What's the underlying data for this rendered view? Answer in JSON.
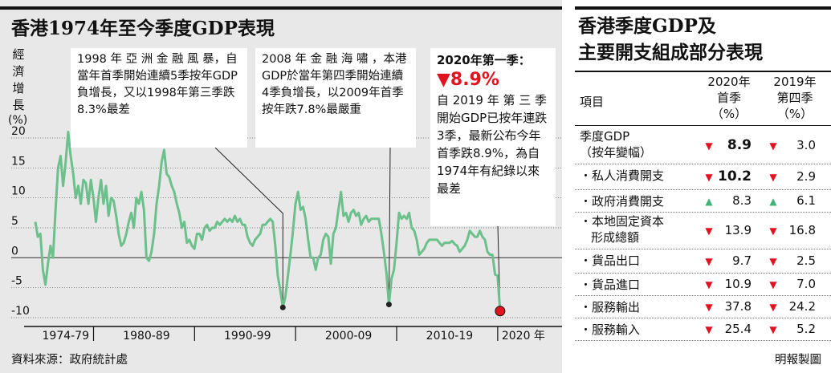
{
  "left": {
    "title": "香港1974年至今季度GDP表現",
    "ylabel_chars": [
      "經",
      "濟",
      "增",
      "長"
    ],
    "ylabel_unit": "(%)",
    "annotations": [
      {
        "text": "1998 年 亞 洲 金 融 風 暴，自當年首季開始連續5季按年GDP負增長，又以1998年第三季跌8.3%最差"
      },
      {
        "text": "2008 年 金 融 海 嘯 ，本港GDP於當年第四季開始連續4季負增長，以2009年首季按年跌7.8%最嚴重"
      },
      {
        "heading": "2020年第一季：",
        "value": "▼8.9%",
        "text": "自 2019 年 第 三 季開始GDP已按年連跌3季，最新公布今年首季跌8.9%，為自1974年有紀錄以來最差"
      }
    ],
    "source": "資料來源：政府統計處"
  },
  "right": {
    "title_line1": "香港季度GDP及",
    "title_line2": "主要開支組成部分表現",
    "col_item": "項目",
    "col1": [
      "2020年",
      "首季",
      "（%）"
    ],
    "col2": [
      "2019年",
      "第四季",
      "（%）"
    ],
    "rows": [
      {
        "label": "季度GDP",
        "label2": "（按年變幅）",
        "v1": "8.9",
        "d1": "down",
        "v2": "3.0",
        "d2": "down",
        "bold": true
      },
      {
        "label": "・私人消費開支",
        "v1": "10.2",
        "d1": "down",
        "v2": "2.9",
        "d2": "down",
        "bold": true
      },
      {
        "label": "・政府消費開支",
        "v1": "8.3",
        "d1": "up",
        "v2": "6.1",
        "d2": "up"
      },
      {
        "label": "・本地固定資本",
        "label2": "形成總額",
        "v1": "13.9",
        "d1": "down",
        "v2": "16.8",
        "d2": "down"
      },
      {
        "label": "・貨品出口",
        "v1": "9.7",
        "d1": "down",
        "v2": "2.5",
        "d2": "down"
      },
      {
        "label": "・貨品進口",
        "v1": "10.9",
        "d1": "down",
        "v2": "7.0",
        "d2": "down"
      },
      {
        "label": "・服務輸出",
        "v1": "37.8",
        "d1": "down",
        "v2": "24.2",
        "d2": "down"
      },
      {
        "label": "・服務輸入",
        "v1": "25.4",
        "d1": "down",
        "v2": "5.2",
        "d2": "down"
      }
    ],
    "credit": "明報製圖"
  },
  "chart_data": {
    "type": "line",
    "title": "香港1974年至今季度GDP表現",
    "ylabel": "經濟增長 (%)",
    "ylim": [
      -10,
      20
    ],
    "yticks": [
      20,
      15,
      10,
      5,
      0,
      -5,
      -10
    ],
    "xticks": [
      "1974-79",
      "1980-89",
      "1990-99",
      "2000-09",
      "2010-19",
      "2020 年"
    ],
    "xlim": [
      1974.0,
      2020.25
    ],
    "colors": {
      "line": "#6cc08c",
      "highlight": "#e0141e"
    },
    "series": [
      {
        "points": [
          [
            1974.0,
            6.0
          ],
          [
            1974.25,
            3.5
          ],
          [
            1974.5,
            4.0
          ],
          [
            1974.75,
            -2.0
          ],
          [
            1975.0,
            -4.5
          ],
          [
            1975.25,
            -1.0
          ],
          [
            1975.5,
            2.0
          ],
          [
            1975.75,
            0.0
          ],
          [
            1976.0,
            8.0
          ],
          [
            1976.25,
            15.0
          ],
          [
            1976.5,
            17.0
          ],
          [
            1976.75,
            12.0
          ],
          [
            1977.0,
            16.0
          ],
          [
            1977.25,
            21.0
          ],
          [
            1977.5,
            17.0
          ],
          [
            1977.75,
            14.0
          ],
          [
            1978.0,
            10.0
          ],
          [
            1978.25,
            12.0
          ],
          [
            1978.5,
            9.0
          ],
          [
            1978.75,
            13.0
          ],
          [
            1979.0,
            12.5
          ],
          [
            1979.25,
            9.0
          ],
          [
            1979.5,
            13.0
          ],
          [
            1979.75,
            10.0
          ],
          [
            1980.0,
            6.0
          ],
          [
            1980.25,
            10.0
          ],
          [
            1980.5,
            13.0
          ],
          [
            1980.75,
            9.0
          ],
          [
            1981.0,
            12.0
          ],
          [
            1981.25,
            7.0
          ],
          [
            1981.5,
            10.0
          ],
          [
            1981.75,
            9.5
          ],
          [
            1982.0,
            7.0
          ],
          [
            1982.25,
            4.0
          ],
          [
            1982.5,
            2.0
          ],
          [
            1982.75,
            2.5
          ],
          [
            1983.0,
            4.0
          ],
          [
            1983.25,
            6.0
          ],
          [
            1983.5,
            7.5
          ],
          [
            1983.75,
            5.0
          ],
          [
            1984.0,
            10.0
          ],
          [
            1984.25,
            9.0
          ],
          [
            1984.5,
            11.0
          ],
          [
            1984.75,
            8.0
          ],
          [
            1985.0,
            0.0
          ],
          [
            1985.25,
            -0.5
          ],
          [
            1985.5,
            1.0
          ],
          [
            1985.75,
            4.0
          ],
          [
            1986.0,
            9.0
          ],
          [
            1986.25,
            12.0
          ],
          [
            1986.5,
            16.0
          ],
          [
            1986.75,
            18.0
          ],
          [
            1987.0,
            14.0
          ],
          [
            1987.25,
            13.5
          ],
          [
            1987.5,
            12.0
          ],
          [
            1987.75,
            11.0
          ],
          [
            1988.0,
            9.0
          ],
          [
            1988.25,
            7.5
          ],
          [
            1988.5,
            5.0
          ],
          [
            1988.75,
            6.0
          ],
          [
            1989.0,
            2.5
          ],
          [
            1989.25,
            3.0
          ],
          [
            1989.5,
            2.0
          ],
          [
            1989.75,
            1.5
          ],
          [
            1990.0,
            4.0
          ],
          [
            1990.25,
            4.0
          ],
          [
            1990.5,
            3.0
          ],
          [
            1990.75,
            5.0
          ],
          [
            1991.0,
            5.5
          ],
          [
            1991.25,
            4.5
          ],
          [
            1991.5,
            5.0
          ],
          [
            1991.75,
            5.0
          ],
          [
            1992.0,
            6.0
          ],
          [
            1992.25,
            5.5
          ],
          [
            1992.5,
            6.0
          ],
          [
            1992.75,
            6.5
          ],
          [
            1993.0,
            6.0
          ],
          [
            1993.25,
            6.5
          ],
          [
            1993.5,
            6.0
          ],
          [
            1993.75,
            7.0
          ],
          [
            1994.0,
            6.0
          ],
          [
            1994.25,
            6.5
          ],
          [
            1994.5,
            5.5
          ],
          [
            1994.75,
            5.5
          ],
          [
            1995.0,
            3.5
          ],
          [
            1995.25,
            2.5
          ],
          [
            1995.5,
            2.0
          ],
          [
            1995.75,
            3.0
          ],
          [
            1996.0,
            3.5
          ],
          [
            1996.25,
            4.0
          ],
          [
            1996.5,
            5.5
          ],
          [
            1996.75,
            5.5
          ],
          [
            1997.0,
            6.0
          ],
          [
            1997.25,
            6.5
          ],
          [
            1997.5,
            6.0
          ],
          [
            1997.75,
            2.0
          ],
          [
            1998.0,
            -3.0
          ],
          [
            1998.25,
            -5.5
          ],
          [
            1998.5,
            -8.3
          ],
          [
            1998.75,
            -6.5
          ],
          [
            1999.0,
            -3.0
          ],
          [
            1999.25,
            0.5
          ],
          [
            1999.5,
            4.5
          ],
          [
            1999.75,
            9.0
          ],
          [
            2000.0,
            11.0
          ],
          [
            2000.25,
            8.0
          ],
          [
            2000.5,
            8.5
          ],
          [
            2000.75,
            6.5
          ],
          [
            2001.0,
            3.0
          ],
          [
            2001.25,
            0.0
          ],
          [
            2001.5,
            0.0
          ],
          [
            2001.75,
            -2.0
          ],
          [
            2002.0,
            0.0
          ],
          [
            2002.25,
            0.5
          ],
          [
            2002.5,
            3.0
          ],
          [
            2002.75,
            4.0
          ],
          [
            2003.0,
            3.5
          ],
          [
            2003.25,
            -1.0
          ],
          [
            2003.5,
            4.0
          ],
          [
            2003.75,
            5.0
          ],
          [
            2004.0,
            8.0
          ],
          [
            2004.25,
            11.0
          ],
          [
            2004.5,
            7.0
          ],
          [
            2004.75,
            7.5
          ],
          [
            2005.0,
            6.0
          ],
          [
            2005.25,
            7.5
          ],
          [
            2005.5,
            8.0
          ],
          [
            2005.75,
            7.0
          ],
          [
            2006.0,
            7.5
          ],
          [
            2006.25,
            5.5
          ],
          [
            2006.5,
            6.5
          ],
          [
            2006.75,
            7.0
          ],
          [
            2007.0,
            6.0
          ],
          [
            2007.25,
            6.5
          ],
          [
            2007.5,
            6.5
          ],
          [
            2007.75,
            6.5
          ],
          [
            2008.0,
            6.5
          ],
          [
            2008.25,
            4.0
          ],
          [
            2008.5,
            1.0
          ],
          [
            2008.75,
            -2.5
          ],
          [
            2009.0,
            -7.8
          ],
          [
            2009.25,
            -3.5
          ],
          [
            2009.5,
            -2.0
          ],
          [
            2009.75,
            2.5
          ],
          [
            2010.0,
            7.5
          ],
          [
            2010.25,
            6.5
          ],
          [
            2010.5,
            7.0
          ],
          [
            2010.75,
            6.5
          ],
          [
            2011.0,
            7.5
          ],
          [
            2011.25,
            5.0
          ],
          [
            2011.5,
            4.5
          ],
          [
            2011.75,
            3.0
          ],
          [
            2012.0,
            0.5
          ],
          [
            2012.25,
            1.0
          ],
          [
            2012.5,
            1.5
          ],
          [
            2012.75,
            2.5
          ],
          [
            2013.0,
            3.0
          ],
          [
            2013.25,
            3.0
          ],
          [
            2013.5,
            3.0
          ],
          [
            2013.75,
            3.0
          ],
          [
            2014.0,
            2.5
          ],
          [
            2014.25,
            2.0
          ],
          [
            2014.5,
            2.5
          ],
          [
            2014.75,
            2.5
          ],
          [
            2015.0,
            2.5
          ],
          [
            2015.25,
            2.8
          ],
          [
            2015.5,
            2.3
          ],
          [
            2015.75,
            2.0
          ],
          [
            2016.0,
            1.0
          ],
          [
            2016.25,
            1.5
          ],
          [
            2016.5,
            2.0
          ],
          [
            2016.75,
            3.0
          ],
          [
            2017.0,
            4.5
          ],
          [
            2017.25,
            4.0
          ],
          [
            2017.5,
            3.5
          ],
          [
            2017.75,
            3.5
          ],
          [
            2018.0,
            4.5
          ],
          [
            2018.25,
            3.5
          ],
          [
            2018.5,
            3.0
          ],
          [
            2018.75,
            1.0
          ],
          [
            2019.0,
            0.5
          ],
          [
            2019.25,
            0.5
          ],
          [
            2019.5,
            -2.8
          ],
          [
            2019.75,
            -3.0
          ],
          [
            2020.0,
            -8.9
          ]
        ]
      }
    ],
    "highlight_points": [
      [
        1998.5,
        -8.3
      ],
      [
        2009.0,
        -7.8
      ],
      [
        2020.0,
        -8.9
      ]
    ]
  }
}
